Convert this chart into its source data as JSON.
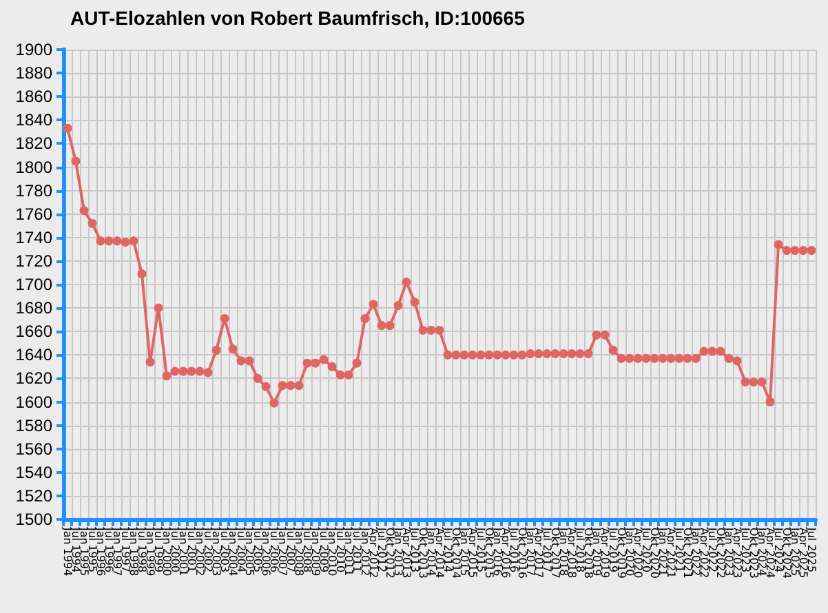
{
  "chart_data": {
    "type": "line",
    "title": "AUT-Elozahlen von Robert Baumfrisch, ID:100665",
    "categories": [
      "Jan 1994",
      "Jul 1994",
      "Jan 1995",
      "Jul 1995",
      "Jan 1996",
      "Jul 1996",
      "Jan 1997",
      "Jul 1997",
      "Jan 1998",
      "Jul 1998",
      "Jan 1999",
      "Jul 1999",
      "Jan 2000",
      "Jul 2000",
      "Jan 2001",
      "Jul 2001",
      "Jan 2002",
      "Jul 2002",
      "Jan 2003",
      "Jul 2003",
      "Jan 2004",
      "Jul 2004",
      "Jan 2005",
      "Jul 2005",
      "Jan 2006",
      "Jul 2006",
      "Jan 2007",
      "Jul 2007",
      "Jan 2008",
      "Jul 2008",
      "Jan 2009",
      "Jul 2009",
      "Jan 2010",
      "Jul 2010",
      "Jan 2011",
      "Jul 2011",
      "Jan 2012",
      "Apr 2012",
      "Jul 2012",
      "Okt 2012",
      "Jan 2013",
      "Apr 2013",
      "Jul 2013",
      "Okt 2013",
      "Jan 2014",
      "Apr 2014",
      "Jul 2014",
      "Okt 2014",
      "Jan 2015",
      "Apr 2015",
      "Jul 2015",
      "Okt 2015",
      "Jan 2016",
      "Apr 2016",
      "Jul 2016",
      "Okt 2016",
      "Jan 2017",
      "Apr 2017",
      "Jul 2017",
      "Okt 2017",
      "Jan 2018",
      "Apr 2018",
      "Jul 2018",
      "Okt 2018",
      "Jan 2019",
      "Apr 2019",
      "Jul 2019",
      "Okt 2019",
      "Jan 2020",
      "Apr 2020",
      "Jul 2020",
      "Okt 2020",
      "Jan 2021",
      "Apr 2021",
      "Jul 2021",
      "Okt 2021",
      "Jan 2022",
      "Apr 2022",
      "Jul 2022",
      "Okt 2022",
      "Jan 2023",
      "Apr 2023",
      "Jul 2023",
      "Okt 2023",
      "Jan 2024",
      "Apr 2024",
      "Jul 2024",
      "Okt 2024",
      "Jan 2025",
      "Apr 2025",
      "Jul 2025"
    ],
    "series": [
      {
        "color": "#e06666",
        "values": [
          1833,
          1805,
          1763,
          1752,
          1737,
          1737,
          1737,
          1736,
          1737,
          1709,
          1634,
          1680,
          1622,
          1626,
          1626,
          1626,
          1626,
          1625,
          1644,
          1671,
          1645,
          1635,
          1635,
          1620,
          1613,
          1599,
          1614,
          1614,
          1614,
          1633,
          1633,
          1636,
          1630,
          1623,
          1623,
          1633,
          1671,
          1683,
          1665,
          1665,
          1682,
          1702,
          1685,
          1661,
          1661,
          1661,
          1640,
          1640,
          1640,
          1640,
          1640,
          1640,
          1640,
          1640,
          1640,
          1640,
          1641,
          1641,
          1641,
          1641,
          1641,
          1641,
          1641,
          1641,
          1657,
          1657,
          1644,
          1637,
          1637,
          1637,
          1637,
          1637,
          1637,
          1637,
          1637,
          1637,
          1637,
          1643,
          1643,
          1643,
          1637,
          1635,
          1617,
          1617,
          1617,
          1600,
          1734,
          1729,
          1729,
          1729,
          1729
        ]
      }
    ],
    "ylim": [
      1500,
      1900
    ],
    "yticks": [
      1500,
      1520,
      1540,
      1560,
      1580,
      1600,
      1620,
      1640,
      1660,
      1680,
      1700,
      1720,
      1740,
      1760,
      1780,
      1800,
      1820,
      1840,
      1860,
      1880,
      1900
    ],
    "grid": true,
    "marker": "circle",
    "line_style": "solid"
  }
}
